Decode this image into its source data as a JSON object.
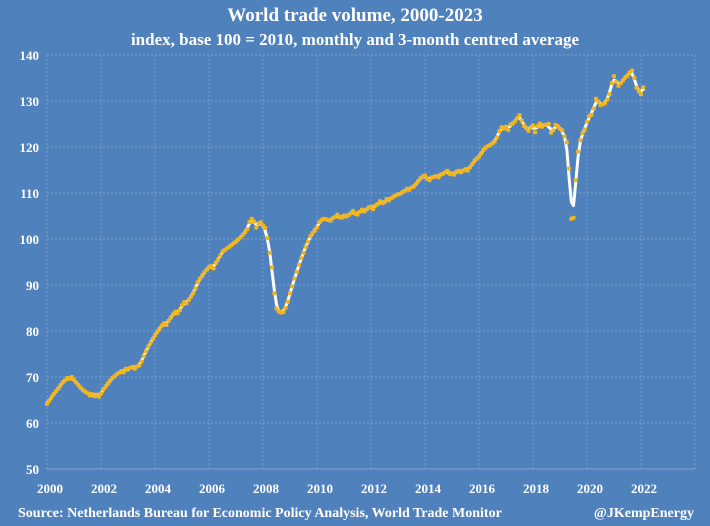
{
  "chart_data": {
    "type": "line",
    "title": "World trade volume, 2000-2023",
    "subtitle": "index, base 100 = 2010, monthly and 3-month centred average",
    "xlabel": "",
    "ylabel": "",
    "xlim": [
      2000,
      2024
    ],
    "ylim": [
      50,
      140
    ],
    "x_ticks": [
      "2000",
      "2002",
      "2004",
      "2006",
      "2008",
      "2010",
      "2012",
      "2014",
      "2016",
      "2018",
      "2020",
      "2022"
    ],
    "y_ticks": [
      "50",
      "60",
      "70",
      "80",
      "90",
      "100",
      "110",
      "120",
      "130",
      "140"
    ],
    "grid": true,
    "legend": "none",
    "series": [
      {
        "name": "Monthly",
        "style": "markers",
        "color": "#f2b51c",
        "start": "2000-01",
        "frequency": "monthly",
        "values": [
          64.2,
          64.8,
          65.6,
          66.3,
          66.9,
          67.5,
          68.2,
          68.9,
          69.3,
          69.8,
          69.6,
          70.0,
          69.4,
          68.8,
          68.2,
          67.6,
          67.1,
          66.8,
          66.5,
          66.0,
          66.3,
          65.8,
          66.2,
          65.7,
          66.4,
          67.3,
          67.9,
          68.5,
          69.2,
          69.8,
          70.1,
          70.6,
          70.9,
          71.3,
          71.0,
          71.8,
          71.6,
          72.0,
          72.2,
          71.8,
          72.3,
          72.5,
          73.4,
          74.5,
          75.6,
          76.6,
          77.4,
          78.3,
          79.1,
          79.8,
          80.5,
          81.2,
          81.7,
          81.3,
          82.2,
          82.9,
          83.6,
          84.2,
          83.8,
          84.5,
          85.6,
          86.3,
          86.0,
          86.8,
          87.5,
          88.3,
          89.3,
          90.6,
          91.4,
          92.0,
          92.8,
          93.4,
          93.9,
          94.1,
          93.6,
          94.8,
          95.5,
          96.4,
          97.3,
          97.6,
          98.0,
          98.3,
          98.7,
          99.1,
          99.4,
          99.9,
          100.4,
          100.9,
          101.5,
          102.1,
          103.7,
          104.4,
          103.8,
          102.5,
          103.4,
          103.6,
          102.9,
          102.4,
          100.2,
          97.0,
          93.8,
          88.2,
          84.9,
          84.3,
          84.0,
          84.1,
          85.0,
          86.4,
          88.2,
          89.7,
          91.4,
          92.9,
          94.4,
          95.8,
          97.0,
          98.3,
          99.4,
          100.6,
          101.3,
          101.9,
          102.5,
          103.6,
          104.2,
          104.4,
          104.3,
          104.1,
          104.0,
          104.5,
          104.8,
          105.3,
          104.7,
          104.6,
          105.1,
          104.9,
          105.2,
          105.6,
          106.1,
          105.5,
          105.3,
          105.9,
          106.4,
          106.0,
          106.4,
          106.9,
          107.0,
          106.5,
          107.3,
          107.6,
          108.2,
          107.8,
          108.0,
          108.7,
          108.4,
          108.9,
          109.2,
          109.5,
          109.7,
          109.8,
          110.2,
          110.5,
          110.9,
          110.7,
          111.2,
          111.4,
          111.9,
          112.6,
          113.2,
          113.6,
          113.8,
          113.1,
          112.8,
          113.4,
          113.5,
          113.7,
          113.4,
          114.0,
          114.2,
          114.5,
          114.8,
          114.1,
          114.3,
          114.0,
          114.6,
          114.8,
          114.5,
          114.9,
          115.2,
          114.9,
          115.6,
          116.3,
          117.0,
          117.5,
          117.9,
          118.6,
          119.4,
          119.9,
          120.2,
          120.5,
          120.8,
          121.2,
          122.1,
          123.4,
          124.3,
          124.0,
          124.4,
          123.7,
          124.9,
          125.1,
          125.6,
          126.3,
          126.9,
          125.7,
          124.6,
          124.1,
          123.5,
          124.3,
          124.7,
          123.2,
          124.5,
          125.1,
          124.4,
          124.8,
          124.9,
          125.0,
          123.1,
          123.6,
          124.8,
          124.5,
          124.0,
          123.6,
          122.3,
          121.0,
          115.3,
          104.4,
          104.6,
          112.8,
          119.0,
          121.5,
          123.0,
          123.8,
          125.5,
          126.7,
          127.0,
          128.4,
          130.5,
          129.9,
          129.1,
          129.3,
          129.5,
          130.3,
          131.5,
          133.9,
          135.4,
          134.2,
          133.3,
          133.9,
          134.5,
          135.2,
          135.5,
          136.2,
          136.6,
          135.0,
          132.9,
          132.1,
          131.5,
          133.0
        ]
      },
      {
        "name": "3-month centred average",
        "style": "line",
        "color": "#ffffff",
        "start": "2000-01",
        "frequency": "monthly",
        "values": "3-month centred average of Monthly series"
      }
    ],
    "annotations": []
  },
  "footer": {
    "source": "Source:  Netherlands Bureau for Economic Policy Analysis, World Trade Monitor",
    "handle": "@JKempEnergy"
  }
}
